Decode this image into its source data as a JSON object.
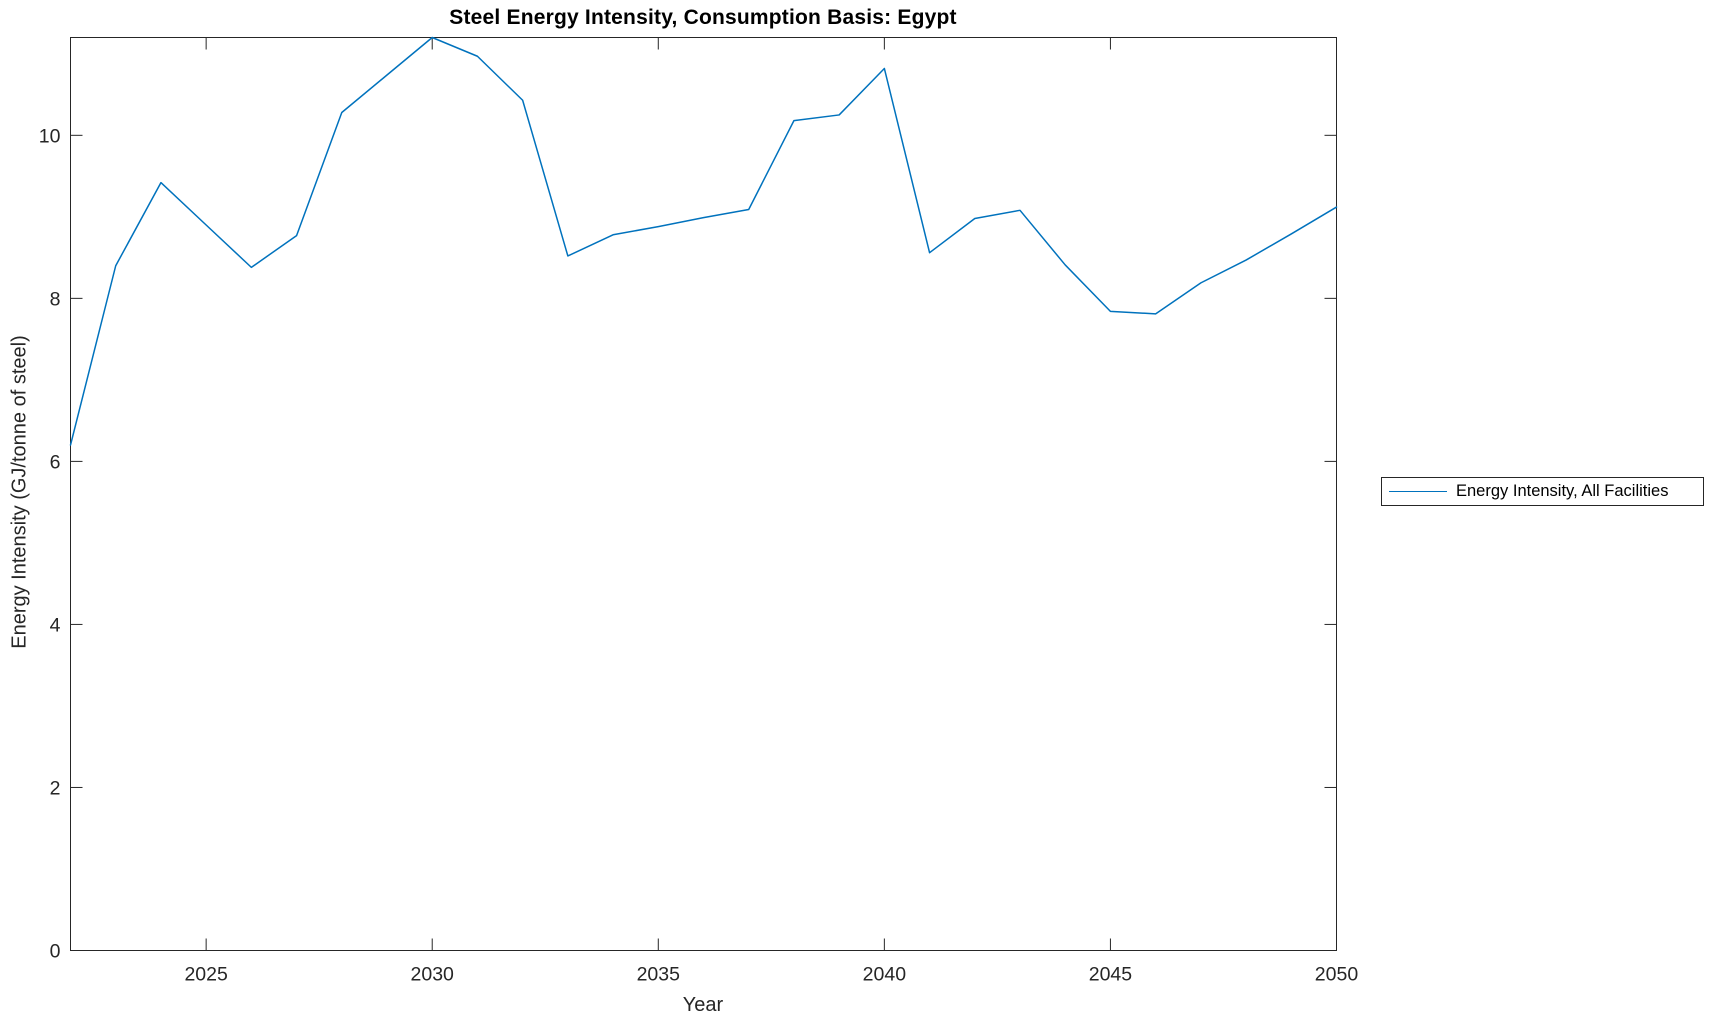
{
  "figure": {
    "background": "#ffffff"
  },
  "chart_data": {
    "type": "line",
    "title": "Steel Energy Intensity, Consumption Basis: Egypt",
    "xlabel": "Year",
    "ylabel": "Energy Intensity (GJ/tonne of steel)",
    "x": [
      2022,
      2023,
      2024,
      2025,
      2026,
      2027,
      2028,
      2029,
      2030,
      2031,
      2032,
      2033,
      2034,
      2035,
      2036,
      2037,
      2038,
      2039,
      2040,
      2041,
      2042,
      2043,
      2044,
      2045,
      2046,
      2047,
      2048,
      2049,
      2050
    ],
    "series": [
      {
        "name": "Energy Intensity, All Facilities",
        "color": "#0072BD",
        "values": [
          6.2,
          8.4,
          9.42,
          8.9,
          8.38,
          8.77,
          10.28,
          10.74,
          11.2,
          10.97,
          10.43,
          8.52,
          8.78,
          8.88,
          8.99,
          9.09,
          10.18,
          10.25,
          10.82,
          8.56,
          8.98,
          9.08,
          8.41,
          7.84,
          7.81,
          8.19,
          8.47,
          8.79,
          9.12
        ]
      }
    ],
    "xlim": [
      2022,
      2050
    ],
    "ylim": [
      0,
      11.2
    ],
    "xticks": [
      "2025",
      "2030",
      "2035",
      "2040",
      "2045",
      "2050"
    ],
    "xtick_values": [
      2025,
      2030,
      2035,
      2040,
      2045,
      2050
    ],
    "yticks": [
      "0",
      "2",
      "4",
      "6",
      "8",
      "10"
    ],
    "ytick_values": [
      0,
      2,
      4,
      6,
      8,
      10
    ],
    "grid": false,
    "legend_position": "right-outside",
    "axis_color": "#262626"
  },
  "legend": {
    "items": [
      {
        "label": "Energy Intensity, All Facilities",
        "color": "#0072BD"
      }
    ]
  }
}
